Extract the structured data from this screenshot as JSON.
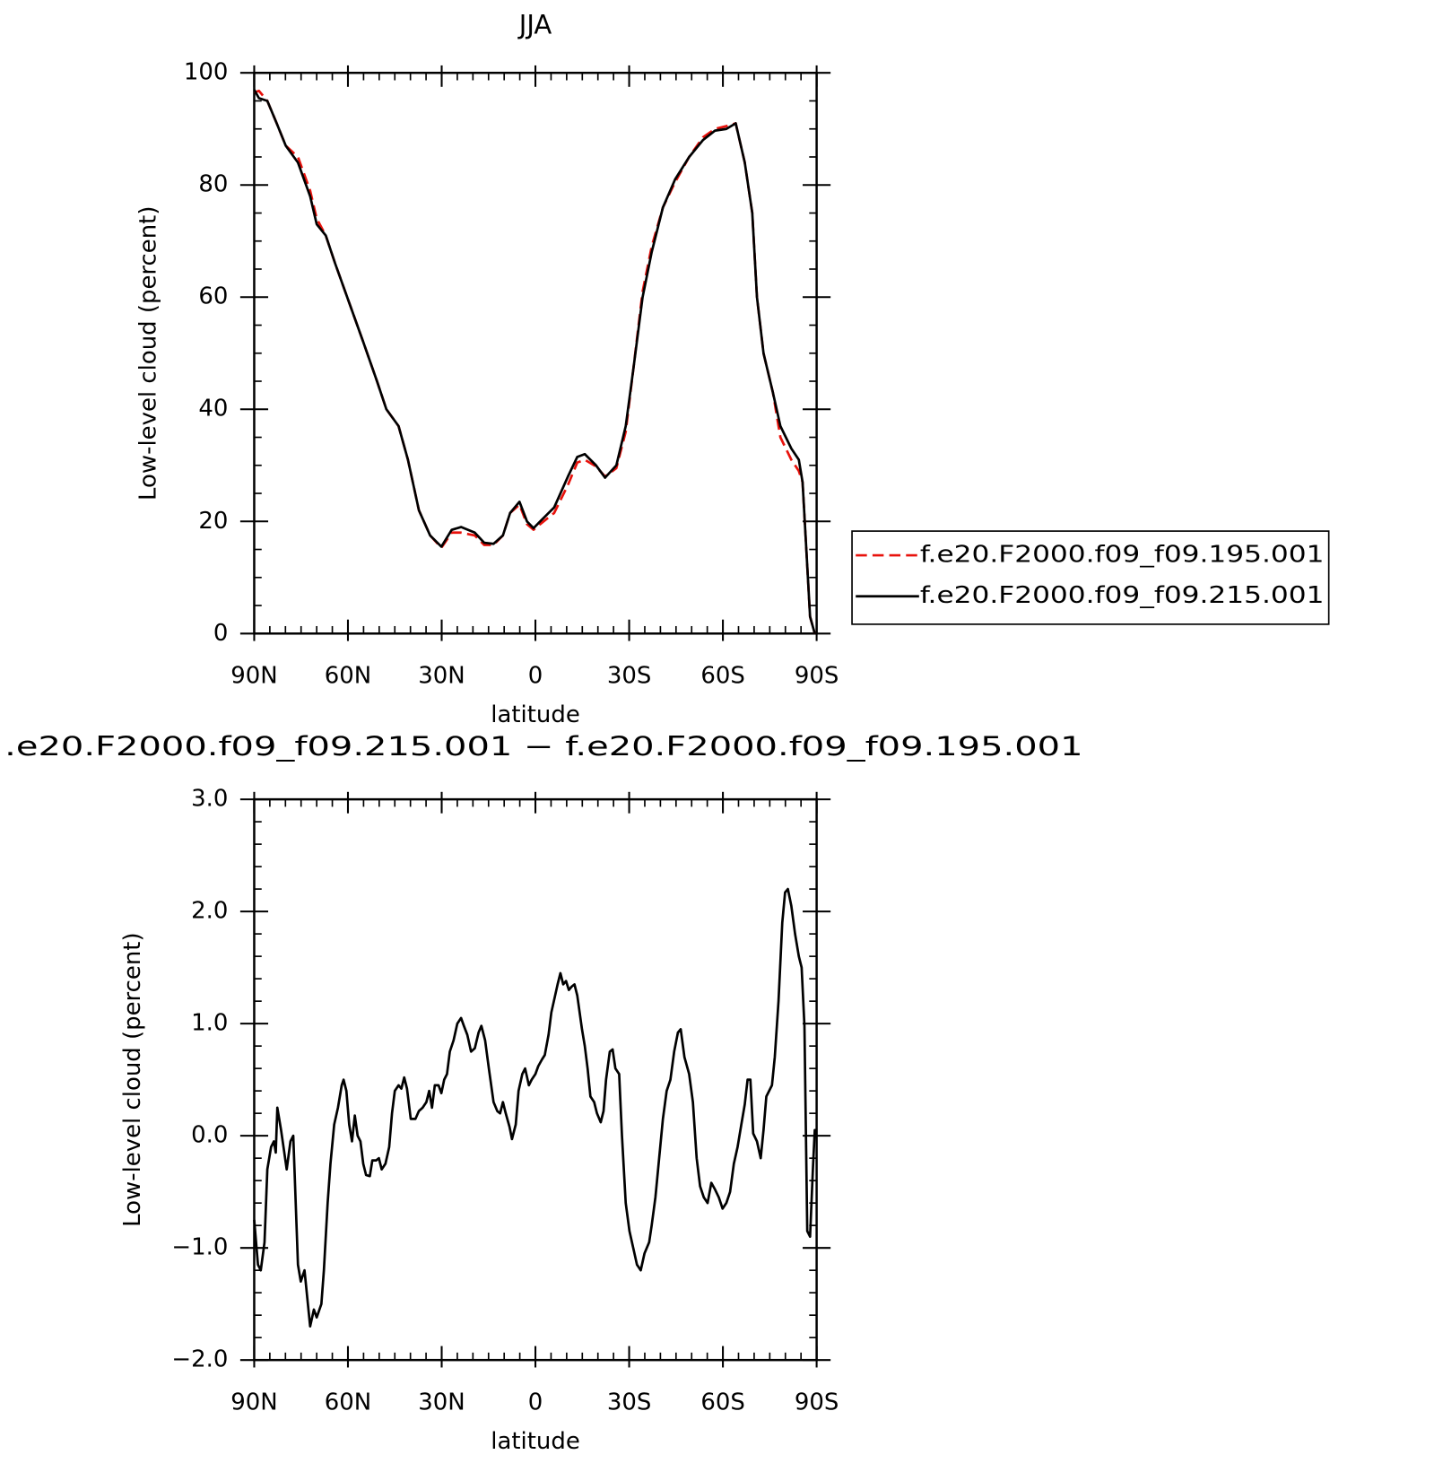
{
  "chart_data": [
    {
      "type": "line",
      "title": "JJA",
      "x_label": "latitude",
      "y_label": "Low-level cloud (percent)",
      "x": [
        90.0,
        88.5,
        85.8,
        82.8,
        79.9,
        76.0,
        72.1,
        70.0,
        67.1,
        64.1,
        59.6,
        55.1,
        50.7,
        47.7,
        43.8,
        40.8,
        37.3,
        33.7,
        30.1,
        26.8,
        23.8,
        19.4,
        16.4,
        13.4,
        10.4,
        8.1,
        5.1,
        2.7,
        0.6,
        -1.5,
        -6.0,
        -10.4,
        -13.4,
        -15.8,
        -19.4,
        -22.3,
        -25.9,
        -28.9,
        -31.3,
        -34.3,
        -37.2,
        -40.8,
        -44.7,
        -49.2,
        -53.6,
        -57.5,
        -61.1,
        -64.1,
        -67.0,
        -69.4,
        -70.9,
        -73.0,
        -76.0,
        -78.4,
        -81.9,
        -84.3,
        -85.5,
        -86.7,
        -87.9,
        -89.4
      ],
      "series": [
        {
          "name": "f.e20.F2000.f09_f09.195.001",
          "color": "#e8120c",
          "line_style": "dashed",
          "values": [
            96.5,
            96.8,
            95,
            91,
            87,
            85,
            79,
            74,
            71,
            66,
            59,
            52,
            45,
            40,
            37,
            31,
            22,
            17.5,
            15.3,
            18,
            18,
            17.5,
            15.8,
            15.8,
            17.5,
            21.5,
            23,
            19.5,
            18.5,
            19.5,
            21.5,
            26.5,
            30.5,
            31,
            29.8,
            28,
            29.5,
            36,
            47,
            61,
            69,
            76,
            80.5,
            85,
            88.5,
            90,
            90.5,
            91,
            84,
            75,
            60,
            50,
            43,
            35,
            31,
            29,
            27,
            15,
            3,
            0
          ]
        },
        {
          "name": "f.e20.F2000.f09_f09.215.001",
          "color": "#000000",
          "line_style": "solid",
          "values": [
            97,
            95.5,
            95,
            91,
            87,
            84,
            78,
            73,
            71,
            66,
            59,
            52,
            45,
            40,
            37,
            31,
            22,
            17.5,
            15.5,
            18.5,
            19,
            18,
            16.2,
            16,
            17.5,
            21.5,
            23.5,
            20,
            18.8,
            20,
            22.5,
            28,
            31.5,
            32,
            30,
            27.8,
            30,
            37,
            47,
            60,
            68,
            76,
            81,
            85,
            88,
            89.7,
            90,
            91,
            84,
            75,
            60,
            50,
            43,
            37,
            33,
            31,
            27,
            15,
            3,
            0
          ]
        }
      ],
      "xlim": [
        90,
        -90
      ],
      "xticks": [
        {
          "value": 90,
          "label": "90N"
        },
        {
          "value": 60,
          "label": "60N"
        },
        {
          "value": 30,
          "label": "30N"
        },
        0,
        {
          "value": -30,
          "label": "30S"
        },
        {
          "value": -60,
          "label": "60S"
        },
        {
          "value": -90,
          "label": "90S"
        }
      ],
      "ylim": [
        0,
        100
      ],
      "yticks": [
        0,
        20,
        40,
        60,
        80,
        100
      ],
      "legend": "right"
    },
    {
      "type": "line",
      "title": ".e20.F2000.f09_f09.215.001 − f.e20.F2000.f09_f09.195.001",
      "x_label": "latitude",
      "y_label": "Low-level cloud (percent)",
      "x": [
        90.0,
        88.8,
        87.9,
        86.7,
        85.8,
        84.6,
        83.7,
        83.1,
        82.6,
        81.4,
        79.6,
        78.4,
        77.5,
        76.0,
        75.1,
        73.9,
        73.0,
        72.1,
        70.9,
        70.0,
        68.5,
        67.7,
        66.5,
        65.6,
        64.4,
        63.2,
        62.0,
        61.4,
        60.5,
        59.6,
        58.7,
        57.8,
        56.9,
        56.0,
        55.1,
        54.2,
        53.0,
        52.2,
        51.0,
        50.1,
        49.2,
        48.0,
        46.8,
        45.9,
        45.0,
        43.8,
        42.9,
        42.0,
        41.1,
        39.9,
        38.4,
        37.3,
        36.1,
        34.9,
        34.0,
        33.1,
        32.2,
        31.0,
        30.1,
        29.2,
        28.3,
        27.4,
        26.2,
        25.0,
        23.8,
        22.9,
        21.8,
        20.6,
        19.4,
        18.2,
        17.3,
        16.1,
        14.9,
        13.4,
        12.2,
        11.3,
        10.4,
        9.5,
        8.3,
        7.5,
        6.3,
        5.4,
        4.2,
        3.3,
        2.1,
        1.2,
        0.0,
        -0.9,
        -2.1,
        -3.0,
        -4.2,
        -5.1,
        -6.3,
        -7.1,
        -8.0,
        -8.9,
        -9.8,
        -10.7,
        -11.6,
        -12.5,
        -13.4,
        -14.9,
        -15.8,
        -16.7,
        -17.6,
        -18.8,
        -19.7,
        -20.9,
        -21.8,
        -22.6,
        -23.8,
        -24.7,
        -25.6,
        -26.8,
        -27.7,
        -28.9,
        -30.1,
        -31.3,
        -32.5,
        -33.7,
        -34.9,
        -36.4,
        -37.2,
        -38.4,
        -39.6,
        -40.8,
        -42.0,
        -43.2,
        -44.4,
        -45.6,
        -46.5,
        -47.7,
        -49.2,
        -50.4,
        -51.6,
        -52.7,
        -53.9,
        -55.1,
        -56.3,
        -57.5,
        -58.7,
        -59.9,
        -61.1,
        -62.3,
        -63.5,
        -64.7,
        -65.9,
        -67.0,
        -67.9,
        -68.8,
        -69.7,
        -70.9,
        -72.1,
        -73.0,
        -73.9,
        -74.8,
        -75.7,
        -76.6,
        -77.8,
        -79.0,
        -79.9,
        -80.8,
        -81.9,
        -83.1,
        -84.3,
        -85.2,
        -86.1,
        -87.0,
        -87.9,
        -88.8,
        -89.4,
        -90.0
      ],
      "series": [
        {
          "color": "#000000",
          "line_style": "solid",
          "values": [
            -0.75,
            -1.15,
            -1.2,
            -0.95,
            -0.3,
            -0.1,
            -0.05,
            -0.15,
            0.25,
            0.05,
            -0.3,
            -0.05,
            0.0,
            -1.15,
            -1.3,
            -1.2,
            -1.45,
            -1.7,
            -1.55,
            -1.62,
            -1.5,
            -1.2,
            -0.6,
            -0.25,
            0.1,
            0.25,
            0.45,
            0.5,
            0.4,
            0.1,
            -0.05,
            0.18,
            0.0,
            -0.05,
            -0.25,
            -0.35,
            -0.36,
            -0.22,
            -0.22,
            -0.2,
            -0.3,
            -0.25,
            -0.1,
            0.2,
            0.4,
            0.45,
            0.42,
            0.52,
            0.42,
            0.15,
            0.15,
            0.22,
            0.25,
            0.3,
            0.4,
            0.25,
            0.45,
            0.45,
            0.38,
            0.5,
            0.55,
            0.75,
            0.85,
            1.0,
            1.05,
            0.98,
            0.9,
            0.75,
            0.78,
            0.92,
            0.98,
            0.85,
            0.6,
            0.3,
            0.22,
            0.2,
            0.3,
            0.2,
            0.08,
            -0.03,
            0.1,
            0.4,
            0.55,
            0.6,
            0.45,
            0.5,
            0.55,
            0.62,
            0.68,
            0.72,
            0.9,
            1.1,
            1.25,
            1.35,
            1.45,
            1.35,
            1.38,
            1.3,
            1.33,
            1.35,
            1.25,
            0.95,
            0.8,
            0.6,
            0.35,
            0.3,
            0.2,
            0.12,
            0.22,
            0.5,
            0.75,
            0.77,
            0.6,
            0.55,
            0.0,
            -0.6,
            -0.85,
            -1.0,
            -1.15,
            -1.2,
            -1.05,
            -0.95,
            -0.8,
            -0.55,
            -0.2,
            0.15,
            0.4,
            0.5,
            0.75,
            0.92,
            0.95,
            0.7,
            0.55,
            0.3,
            -0.2,
            -0.45,
            -0.55,
            -0.6,
            -0.42,
            -0.48,
            -0.55,
            -0.65,
            -0.6,
            -0.5,
            -0.25,
            -0.1,
            0.1,
            0.28,
            0.5,
            0.5,
            0.02,
            -0.05,
            -0.2,
            0.05,
            0.35,
            0.4,
            0.45,
            0.7,
            1.2,
            1.9,
            2.17,
            2.2,
            2.05,
            1.8,
            1.6,
            1.5,
            0.98,
            -0.85,
            -0.9,
            -0.3,
            0.05,
            0.05
          ]
        }
      ],
      "xlim": [
        90,
        -90
      ],
      "xticks": [
        {
          "value": 90,
          "label": "90N"
        },
        {
          "value": 60,
          "label": "60N"
        },
        {
          "value": 30,
          "label": "30N"
        },
        0,
        {
          "value": -30,
          "label": "30S"
        },
        {
          "value": -60,
          "label": "60S"
        },
        {
          "value": -90,
          "label": "90S"
        }
      ],
      "ylim": [
        -2,
        3
      ],
      "yticks": [
        {
          "value": -2,
          "label": "−2.0"
        },
        {
          "value": -1,
          "label": "−1.0"
        },
        {
          "value": 0,
          "label": "0.0"
        },
        {
          "value": 1,
          "label": "1.0"
        },
        {
          "value": 2,
          "label": "2.0"
        },
        {
          "value": 3,
          "label": "3.0"
        }
      ]
    }
  ]
}
